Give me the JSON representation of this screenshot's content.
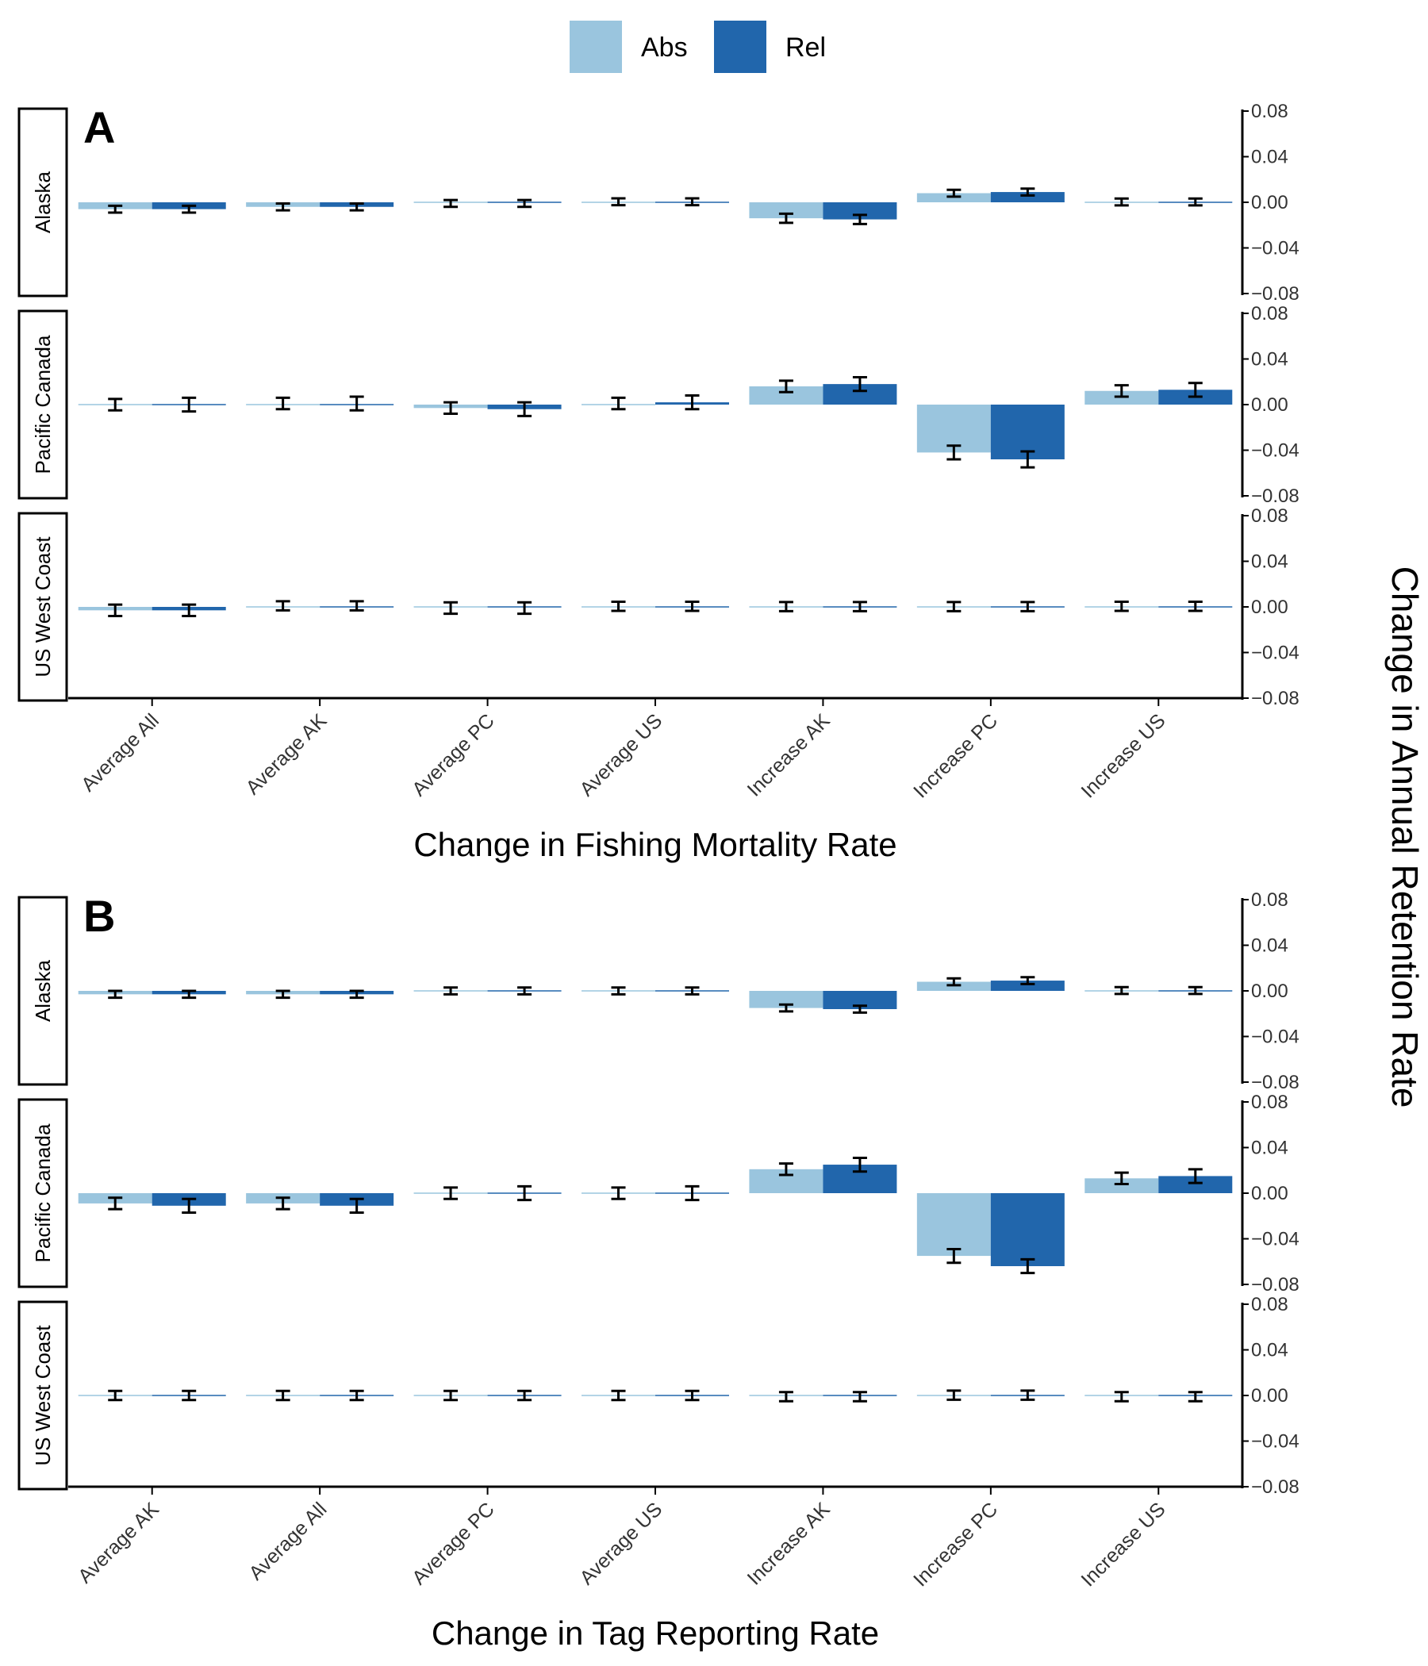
{
  "colors": {
    "abs": "#9ac5de",
    "rel": "#2166ac",
    "errorbar": "#000000",
    "axis": "#000000"
  },
  "legend": {
    "position": "top",
    "items": [
      {
        "key": "abs",
        "label": "Abs"
      },
      {
        "key": "rel",
        "label": "Rel"
      }
    ]
  },
  "y_axis_title": "Change in Annual Retention Rate",
  "chart_data": [
    {
      "type": "bar",
      "panel_tag": "A",
      "xlabel": "Change in Fishing Mortality Rate",
      "ylabel": "Change in Annual Retention Rate",
      "ylim": [
        -0.08,
        0.08
      ],
      "yticks": [
        0.08,
        0.04,
        0.0,
        -0.04,
        -0.08
      ],
      "ytick_labels": [
        "0.08",
        "0.04",
        "0.00",
        "−0.04",
        "−0.08"
      ],
      "categories": [
        "Average All",
        "Average AK",
        "Average PC",
        "Average US",
        "Increase AK",
        "Increase PC",
        "Increase US"
      ],
      "facets": [
        {
          "label": "Alaska",
          "series": [
            {
              "name": "Abs",
              "values": [
                -0.006,
                -0.004,
                -0.001,
                0.0005,
                -0.014,
                0.008,
                0.0003
              ],
              "err": [
                0.003,
                0.003,
                0.003,
                0.003,
                0.004,
                0.003,
                0.003
              ]
            },
            {
              "name": "Rel",
              "values": [
                -0.006,
                -0.004,
                -0.001,
                0.0005,
                -0.015,
                0.009,
                0.0003
              ],
              "err": [
                0.003,
                0.003,
                0.003,
                0.003,
                0.004,
                0.003,
                0.003
              ]
            }
          ]
        },
        {
          "label": "Pacific Canada",
          "series": [
            {
              "name": "Abs",
              "values": [
                0.0,
                0.001,
                -0.003,
                0.001,
                0.016,
                -0.042,
                0.012
              ],
              "err": [
                0.005,
                0.005,
                0.005,
                0.005,
                0.005,
                0.006,
                0.005
              ]
            },
            {
              "name": "Rel",
              "values": [
                0.0,
                0.001,
                -0.004,
                0.002,
                0.018,
                -0.048,
                0.013
              ],
              "err": [
                0.006,
                0.006,
                0.006,
                0.006,
                0.006,
                0.007,
                0.006
              ]
            }
          ]
        },
        {
          "label": "US West Coast",
          "series": [
            {
              "name": "Abs",
              "values": [
                -0.003,
                0.001,
                -0.001,
                0.0005,
                0.0003,
                0.0003,
                0.0005
              ],
              "err": [
                0.005,
                0.004,
                0.005,
                0.004,
                0.004,
                0.004,
                0.004
              ]
            },
            {
              "name": "Rel",
              "values": [
                -0.003,
                0.001,
                -0.001,
                0.0005,
                0.0003,
                0.0003,
                0.0005
              ],
              "err": [
                0.005,
                0.004,
                0.005,
                0.004,
                0.004,
                0.004,
                0.004
              ]
            }
          ]
        }
      ]
    },
    {
      "type": "bar",
      "panel_tag": "B",
      "xlabel": "Change in Tag Reporting Rate",
      "ylabel": "Change in Annual Retention Rate",
      "ylim": [
        -0.08,
        0.08
      ],
      "yticks": [
        0.08,
        0.04,
        0.0,
        -0.04,
        -0.08
      ],
      "ytick_labels": [
        "0.08",
        "0.04",
        "0.00",
        "−0.04",
        "−0.08"
      ],
      "categories": [
        "Average AK",
        "Average All",
        "Average PC",
        "Average US",
        "Increase AK",
        "Increase PC",
        "Increase US"
      ],
      "facets": [
        {
          "label": "Alaska",
          "series": [
            {
              "name": "Abs",
              "values": [
                -0.003,
                -0.003,
                0.0,
                0.0,
                -0.015,
                0.008,
                0.0003
              ],
              "err": [
                0.003,
                0.003,
                0.003,
                0.003,
                0.003,
                0.003,
                0.003
              ]
            },
            {
              "name": "Rel",
              "values": [
                -0.003,
                -0.003,
                0.0,
                0.0,
                -0.016,
                0.009,
                0.0003
              ],
              "err": [
                0.003,
                0.003,
                0.003,
                0.003,
                0.003,
                0.003,
                0.003
              ]
            }
          ]
        },
        {
          "label": "Pacific Canada",
          "series": [
            {
              "name": "Abs",
              "values": [
                -0.009,
                -0.009,
                0.0,
                0.0,
                0.021,
                -0.055,
                0.013
              ],
              "err": [
                0.005,
                0.005,
                0.005,
                0.005,
                0.005,
                0.006,
                0.005
              ]
            },
            {
              "name": "Rel",
              "values": [
                -0.011,
                -0.011,
                0.0,
                0.0,
                0.025,
                -0.064,
                0.015
              ],
              "err": [
                0.006,
                0.006,
                0.006,
                0.006,
                0.006,
                0.006,
                0.006
              ]
            }
          ]
        },
        {
          "label": "US West Coast",
          "series": [
            {
              "name": "Abs",
              "values": [
                0.0,
                0.0,
                0.0,
                0.0,
                -0.001,
                0.0003,
                -0.001
              ],
              "err": [
                0.004,
                0.004,
                0.004,
                0.004,
                0.004,
                0.004,
                0.004
              ]
            },
            {
              "name": "Rel",
              "values": [
                0.0,
                0.0,
                0.0,
                0.0,
                -0.001,
                0.0003,
                -0.001
              ],
              "err": [
                0.004,
                0.004,
                0.004,
                0.004,
                0.004,
                0.004,
                0.004
              ]
            }
          ]
        }
      ]
    }
  ]
}
